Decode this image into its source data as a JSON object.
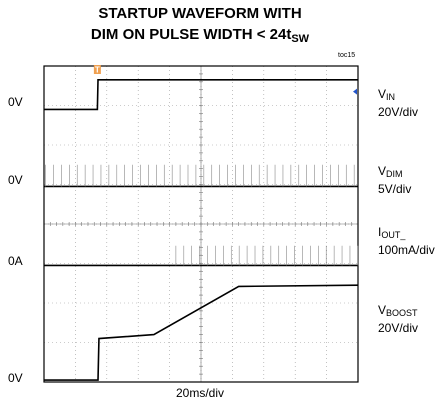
{
  "chart_data": {
    "type": "line",
    "title_line1": "STARTUP WAVEFORM WITH",
    "title_line2_prefix": "DIM ON PULSE WIDTH < 24t",
    "title_line2_sub": "SW",
    "figure_tag": "toc15",
    "xlabel": "20ms/div",
    "divisions": {
      "x": 10,
      "y": 8
    },
    "trigger_marker": "T",
    "trigger_time_div": 1.7,
    "channels": [
      {
        "name": "V",
        "sub": "IN",
        "scale": "20V/div",
        "ref_label": "0V",
        "ref_div": 6.9,
        "points": [
          [
            0,
            6.9
          ],
          [
            1.7,
            6.9
          ],
          [
            1.72,
            7.65
          ],
          [
            10,
            7.65
          ]
        ]
      },
      {
        "name": "V",
        "sub": "DIM",
        "scale": "5V/div",
        "ref_label": "0V",
        "ref_div": 4.95,
        "pulse_period_div": 0.252,
        "pulse_height_div": 0.55
      },
      {
        "name": "I",
        "sub": "OUT_",
        "scale": "100mA/div",
        "ref_label": "0A",
        "ref_div": 2.95,
        "pulse_period_div": 0.252,
        "pulse_height_div": 0.5,
        "pulse_start_div": 4.2
      },
      {
        "name": "V",
        "sub": "BOOST",
        "scale": "20V/div",
        "ref_label": "0V",
        "ref_div": 0.05,
        "points": [
          [
            0,
            0.05
          ],
          [
            1.72,
            0.05
          ],
          [
            1.75,
            1.1
          ],
          [
            3.5,
            1.2
          ],
          [
            6.2,
            2.42
          ],
          [
            10,
            2.45
          ]
        ]
      }
    ]
  }
}
